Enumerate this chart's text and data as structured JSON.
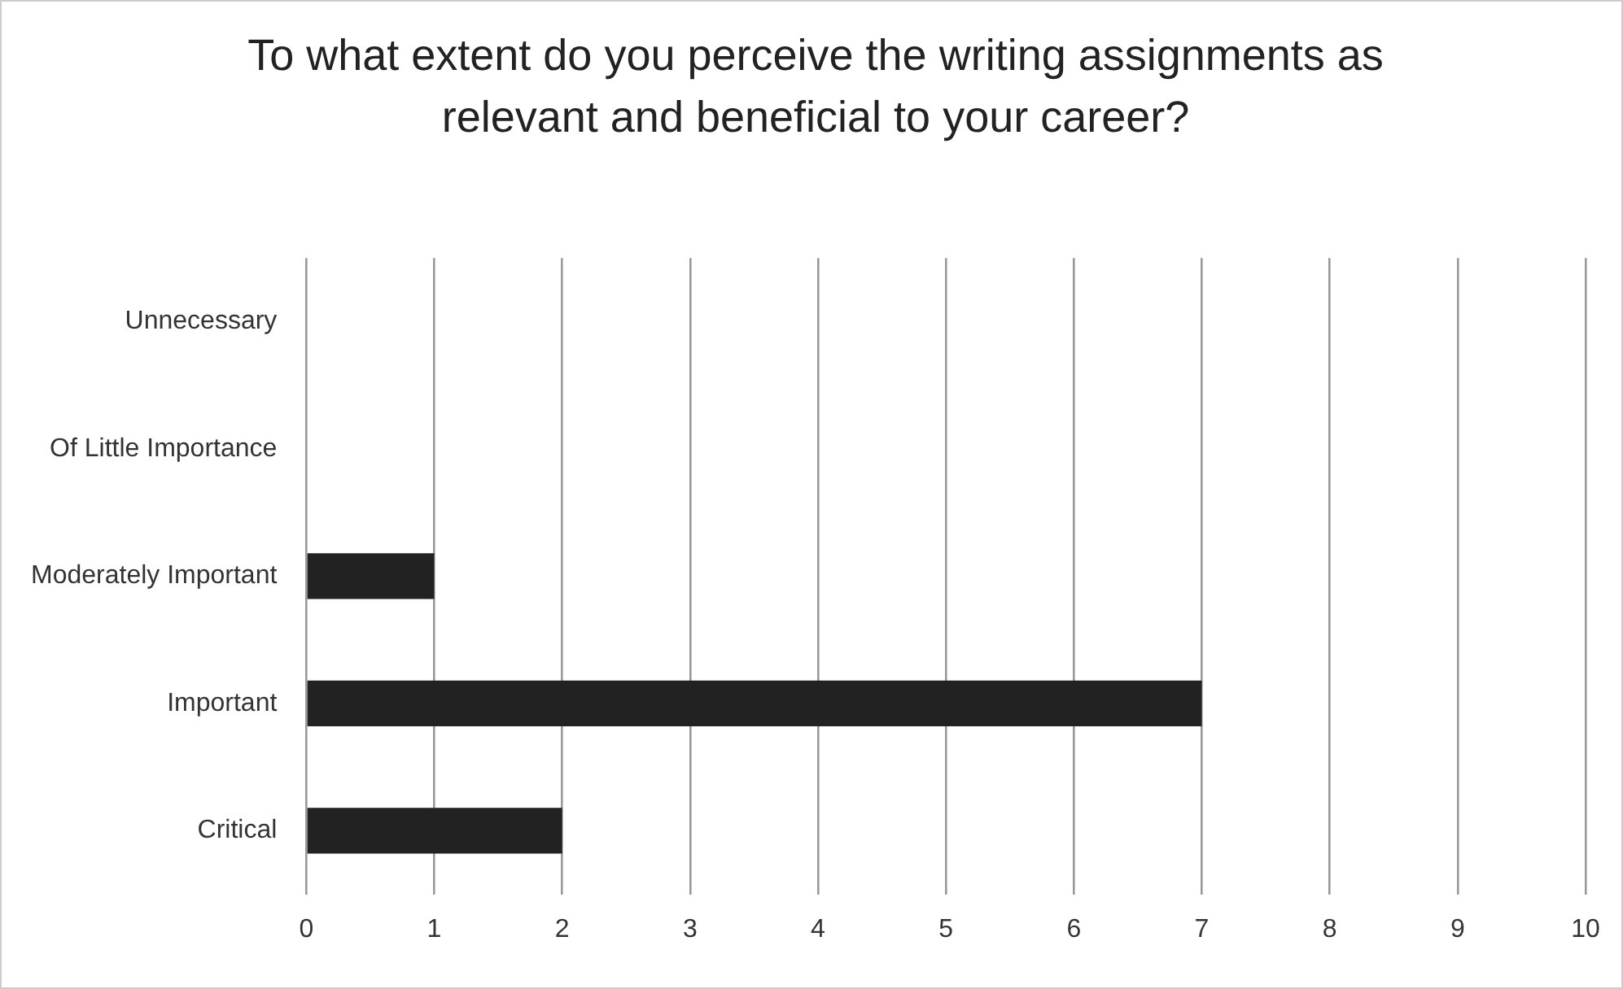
{
  "chart_data": {
    "type": "bar",
    "orientation": "horizontal",
    "title": "To what extent do you perceive the writing assignments as relevant and beneficial to your career?",
    "categories": [
      "Unnecessary",
      "Of Little Importance",
      "Moderately Important",
      "Important",
      "Critical"
    ],
    "values": [
      0,
      0,
      1,
      7,
      2
    ],
    "color": "#222222",
    "xlim": [
      0,
      10
    ],
    "xticks": [
      0,
      1,
      2,
      3,
      4,
      5,
      6,
      7,
      8,
      9,
      10
    ],
    "grid": "x",
    "legend": false
  }
}
